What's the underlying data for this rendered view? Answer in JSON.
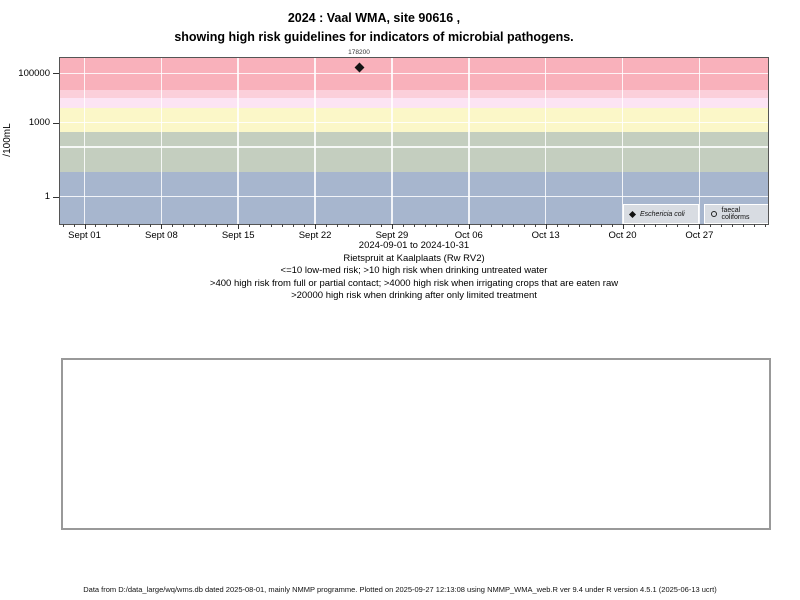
{
  "title": {
    "line1": "2024 : Vaal WMA, site 90616 ,",
    "line2": "showing high risk guidelines for indicators of microbial pathogens."
  },
  "chart_data": {
    "type": "scatter",
    "ylabel": "/100mL",
    "y_axis": {
      "scale": "log10",
      "range": [
        0.077,
        420000
      ],
      "ticks": [
        {
          "label": "1",
          "value": 1
        },
        {
          "label": "1000",
          "value": 1000
        },
        {
          "label": "100000",
          "value": 100000
        }
      ]
    },
    "x_axis": {
      "range_label": "2024-09-01 to 2024-10-31",
      "ticks": [
        {
          "label": "Sept 01",
          "day": 0
        },
        {
          "label": "Sept 08",
          "day": 7
        },
        {
          "label": "Sept 15",
          "day": 14
        },
        {
          "label": "Sept 22",
          "day": 21
        },
        {
          "label": "Sept 29",
          "day": 28
        },
        {
          "label": "Oct 06",
          "day": 35
        },
        {
          "label": "Oct 13",
          "day": 42
        },
        {
          "label": "Oct 20",
          "day": 49
        },
        {
          "label": "Oct 27",
          "day": 56
        }
      ],
      "minor_tick_days": {
        "from": -2,
        "to": 62
      }
    },
    "gridlines_h_values": [
      1,
      100,
      1000,
      100000
    ],
    "bands": [
      {
        "from": 20000,
        "to": 420000,
        "color": "#f9b1bb"
      },
      {
        "from": 10000,
        "to": 20000,
        "color": "#fbcfda"
      },
      {
        "from": 4000,
        "to": 10000,
        "color": "#fce4f4"
      },
      {
        "from": 400,
        "to": 4000,
        "color": "#fbf7c8"
      },
      {
        "from": 10,
        "to": 400,
        "color": "#c4cebf"
      },
      {
        "from": 0.077,
        "to": 10,
        "color": "#a7b6ce"
      }
    ],
    "series": [
      {
        "name": "Eschericia coli",
        "marker": "filled-diamond",
        "color": "#141414",
        "points": [
          {
            "day": 25,
            "value": 178200,
            "label": "178200"
          }
        ]
      },
      {
        "name": "faecal coliforms",
        "marker": "open-circle",
        "color": "#222222",
        "points": []
      }
    ],
    "legend_position": "bottom-right-inside"
  },
  "caption": {
    "lines": [
      "2024-09-01 to 2024-10-31",
      "Rietspruit at Kaalplaats (Rw RV2)",
      "<=10 low-med risk; >10 high risk when drinking untreated water",
      ">400 high risk from full or partial contact; >4000 high risk when irrigating crops that are eaten raw",
      ">20000 high risk when drinking after only limited treatment"
    ]
  },
  "footer": {
    "text": "Data from D:/data_large/wq/wms.db dated 2025-08-01, mainly NMMP programme. Plotted on 2025-09-27 12:13:08 using NMMP_WMA_web.R ver 9.4 under R version 4.5.1 (2025-06-13 ucrt)"
  }
}
